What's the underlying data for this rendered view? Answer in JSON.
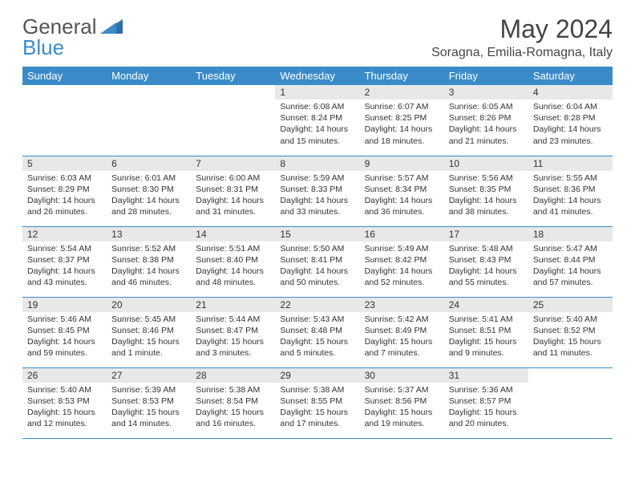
{
  "logo": {
    "text1": "General",
    "text2": "Blue"
  },
  "title": "May 2024",
  "location": "Soragna, Emilia-Romagna, Italy",
  "headers": [
    "Sunday",
    "Monday",
    "Tuesday",
    "Wednesday",
    "Thursday",
    "Friday",
    "Saturday"
  ],
  "colors": {
    "header_bg": "#3b8bc9",
    "header_fg": "#ffffff",
    "daynum_bg": "#e8e8e8",
    "border": "#3b8bc9"
  },
  "font": {
    "title_size": 32,
    "location_size": 16,
    "header_size": 13,
    "body_size": 10.5
  },
  "weeks": [
    [
      {
        "n": "",
        "sr": "",
        "ss": "",
        "dl": ""
      },
      {
        "n": "",
        "sr": "",
        "ss": "",
        "dl": ""
      },
      {
        "n": "",
        "sr": "",
        "ss": "",
        "dl": ""
      },
      {
        "n": "1",
        "sr": "Sunrise: 6:08 AM",
        "ss": "Sunset: 8:24 PM",
        "dl": "Daylight: 14 hours and 15 minutes."
      },
      {
        "n": "2",
        "sr": "Sunrise: 6:07 AM",
        "ss": "Sunset: 8:25 PM",
        "dl": "Daylight: 14 hours and 18 minutes."
      },
      {
        "n": "3",
        "sr": "Sunrise: 6:05 AM",
        "ss": "Sunset: 8:26 PM",
        "dl": "Daylight: 14 hours and 21 minutes."
      },
      {
        "n": "4",
        "sr": "Sunrise: 6:04 AM",
        "ss": "Sunset: 8:28 PM",
        "dl": "Daylight: 14 hours and 23 minutes."
      }
    ],
    [
      {
        "n": "5",
        "sr": "Sunrise: 6:03 AM",
        "ss": "Sunset: 8:29 PM",
        "dl": "Daylight: 14 hours and 26 minutes."
      },
      {
        "n": "6",
        "sr": "Sunrise: 6:01 AM",
        "ss": "Sunset: 8:30 PM",
        "dl": "Daylight: 14 hours and 28 minutes."
      },
      {
        "n": "7",
        "sr": "Sunrise: 6:00 AM",
        "ss": "Sunset: 8:31 PM",
        "dl": "Daylight: 14 hours and 31 minutes."
      },
      {
        "n": "8",
        "sr": "Sunrise: 5:59 AM",
        "ss": "Sunset: 8:33 PM",
        "dl": "Daylight: 14 hours and 33 minutes."
      },
      {
        "n": "9",
        "sr": "Sunrise: 5:57 AM",
        "ss": "Sunset: 8:34 PM",
        "dl": "Daylight: 14 hours and 36 minutes."
      },
      {
        "n": "10",
        "sr": "Sunrise: 5:56 AM",
        "ss": "Sunset: 8:35 PM",
        "dl": "Daylight: 14 hours and 38 minutes."
      },
      {
        "n": "11",
        "sr": "Sunrise: 5:55 AM",
        "ss": "Sunset: 8:36 PM",
        "dl": "Daylight: 14 hours and 41 minutes."
      }
    ],
    [
      {
        "n": "12",
        "sr": "Sunrise: 5:54 AM",
        "ss": "Sunset: 8:37 PM",
        "dl": "Daylight: 14 hours and 43 minutes."
      },
      {
        "n": "13",
        "sr": "Sunrise: 5:52 AM",
        "ss": "Sunset: 8:38 PM",
        "dl": "Daylight: 14 hours and 46 minutes."
      },
      {
        "n": "14",
        "sr": "Sunrise: 5:51 AM",
        "ss": "Sunset: 8:40 PM",
        "dl": "Daylight: 14 hours and 48 minutes."
      },
      {
        "n": "15",
        "sr": "Sunrise: 5:50 AM",
        "ss": "Sunset: 8:41 PM",
        "dl": "Daylight: 14 hours and 50 minutes."
      },
      {
        "n": "16",
        "sr": "Sunrise: 5:49 AM",
        "ss": "Sunset: 8:42 PM",
        "dl": "Daylight: 14 hours and 52 minutes."
      },
      {
        "n": "17",
        "sr": "Sunrise: 5:48 AM",
        "ss": "Sunset: 8:43 PM",
        "dl": "Daylight: 14 hours and 55 minutes."
      },
      {
        "n": "18",
        "sr": "Sunrise: 5:47 AM",
        "ss": "Sunset: 8:44 PM",
        "dl": "Daylight: 14 hours and 57 minutes."
      }
    ],
    [
      {
        "n": "19",
        "sr": "Sunrise: 5:46 AM",
        "ss": "Sunset: 8:45 PM",
        "dl": "Daylight: 14 hours and 59 minutes."
      },
      {
        "n": "20",
        "sr": "Sunrise: 5:45 AM",
        "ss": "Sunset: 8:46 PM",
        "dl": "Daylight: 15 hours and 1 minute."
      },
      {
        "n": "21",
        "sr": "Sunrise: 5:44 AM",
        "ss": "Sunset: 8:47 PM",
        "dl": "Daylight: 15 hours and 3 minutes."
      },
      {
        "n": "22",
        "sr": "Sunrise: 5:43 AM",
        "ss": "Sunset: 8:48 PM",
        "dl": "Daylight: 15 hours and 5 minutes."
      },
      {
        "n": "23",
        "sr": "Sunrise: 5:42 AM",
        "ss": "Sunset: 8:49 PM",
        "dl": "Daylight: 15 hours and 7 minutes."
      },
      {
        "n": "24",
        "sr": "Sunrise: 5:41 AM",
        "ss": "Sunset: 8:51 PM",
        "dl": "Daylight: 15 hours and 9 minutes."
      },
      {
        "n": "25",
        "sr": "Sunrise: 5:40 AM",
        "ss": "Sunset: 8:52 PM",
        "dl": "Daylight: 15 hours and 11 minutes."
      }
    ],
    [
      {
        "n": "26",
        "sr": "Sunrise: 5:40 AM",
        "ss": "Sunset: 8:53 PM",
        "dl": "Daylight: 15 hours and 12 minutes."
      },
      {
        "n": "27",
        "sr": "Sunrise: 5:39 AM",
        "ss": "Sunset: 8:53 PM",
        "dl": "Daylight: 15 hours and 14 minutes."
      },
      {
        "n": "28",
        "sr": "Sunrise: 5:38 AM",
        "ss": "Sunset: 8:54 PM",
        "dl": "Daylight: 15 hours and 16 minutes."
      },
      {
        "n": "29",
        "sr": "Sunrise: 5:38 AM",
        "ss": "Sunset: 8:55 PM",
        "dl": "Daylight: 15 hours and 17 minutes."
      },
      {
        "n": "30",
        "sr": "Sunrise: 5:37 AM",
        "ss": "Sunset: 8:56 PM",
        "dl": "Daylight: 15 hours and 19 minutes."
      },
      {
        "n": "31",
        "sr": "Sunrise: 5:36 AM",
        "ss": "Sunset: 8:57 PM",
        "dl": "Daylight: 15 hours and 20 minutes."
      },
      {
        "n": "",
        "sr": "",
        "ss": "",
        "dl": ""
      }
    ]
  ]
}
